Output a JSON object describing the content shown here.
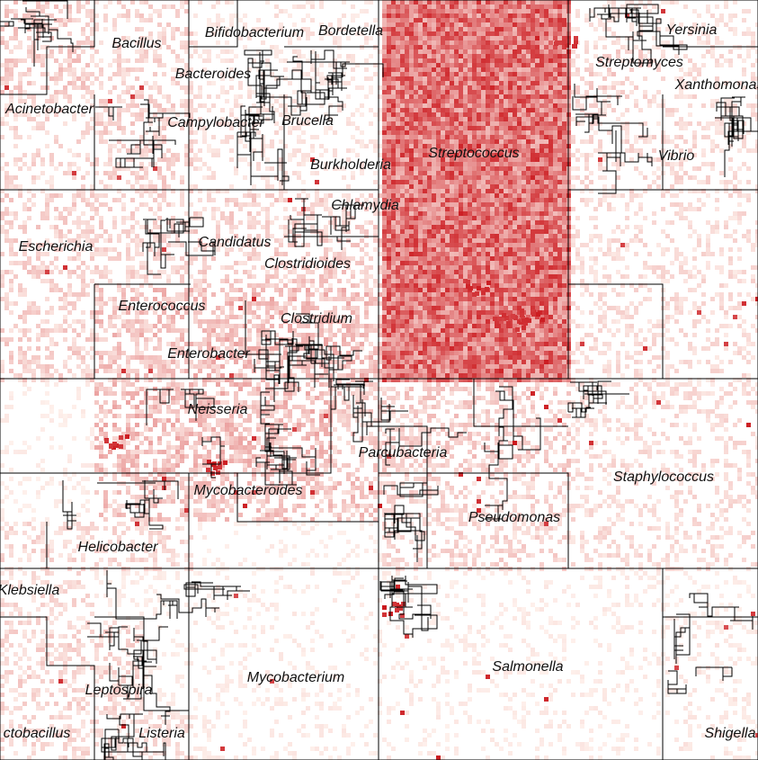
{
  "chart_data": {
    "type": "heatmap",
    "layout": "hilbert-curve genome map",
    "colors": {
      "low": "#fff5f0",
      "high": "#cb181d",
      "outline": "#000000",
      "background": "#ffffff"
    },
    "regions": [
      {
        "name": "Bacillus",
        "density": 0.22
      },
      {
        "name": "Bifidobacterium",
        "density": 0.18
      },
      {
        "name": "Bordetella",
        "density": 0.1
      },
      {
        "name": "Acinetobacter",
        "density": 0.16
      },
      {
        "name": "Bacteroides",
        "density": 0.2
      },
      {
        "name": "Campylobacter",
        "density": 0.24
      },
      {
        "name": "Brucella",
        "density": 0.12
      },
      {
        "name": "Burkholderia",
        "density": 0.1
      },
      {
        "name": "Streptococcus",
        "density": 0.72
      },
      {
        "name": "Yersinia",
        "density": 0.12
      },
      {
        "name": "Streptomyces",
        "density": 0.2
      },
      {
        "name": "Xanthomonas",
        "density": 0.14
      },
      {
        "name": "Vibrio",
        "density": 0.15
      },
      {
        "name": "Escherichia",
        "density": 0.2
      },
      {
        "name": "Candidatus",
        "density": 0.18
      },
      {
        "name": "Chlamydia",
        "density": 0.2
      },
      {
        "name": "Clostridioides",
        "density": 0.22
      },
      {
        "name": "Enterococcus",
        "density": 0.28
      },
      {
        "name": "Clostridium",
        "density": 0.3
      },
      {
        "name": "Enterobacter",
        "density": 0.26
      },
      {
        "name": "Neisseria",
        "density": 0.3
      },
      {
        "name": "Parcubacteria",
        "density": 0.22
      },
      {
        "name": "Staphylococcus",
        "density": 0.14
      },
      {
        "name": "Mycobacteroides",
        "density": 0.26
      },
      {
        "name": "Pseudomonas",
        "density": 0.18
      },
      {
        "name": "Helicobacter",
        "density": 0.16
      },
      {
        "name": "Klebsiella",
        "density": 0.15
      },
      {
        "name": "Mycobacterium",
        "density": 0.06
      },
      {
        "name": "Salmonella",
        "density": 0.06
      },
      {
        "name": "Leptospira",
        "density": 0.18
      },
      {
        "name": "Lactobacillus",
        "label": "ctobacillus",
        "density": 0.16
      },
      {
        "name": "Listeria",
        "density": 0.14
      },
      {
        "name": "Shigella",
        "density": 0.08
      }
    ]
  }
}
